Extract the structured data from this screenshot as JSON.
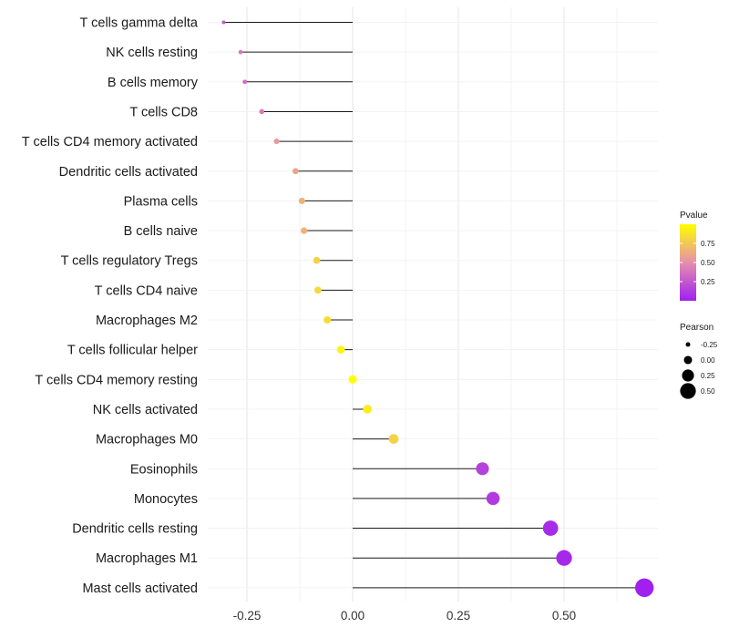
{
  "chart_data": {
    "type": "lollipop",
    "categories": [
      "T cells gamma delta",
      "NK cells resting",
      "B cells memory",
      "T cells CD8",
      "T cells CD4 memory activated",
      "Dendritic cells activated",
      "Plasma cells",
      "B cells naive",
      "T cells regulatory  Tregs ",
      "T cells CD4 naive",
      "Macrophages M2",
      "T cells follicular helper",
      "T cells CD4 memory resting",
      "NK cells activated",
      "Macrophages M0",
      "Eosinophils",
      "Monocytes",
      "Dendritic cells resting",
      "Macrophages M1",
      "Mast cells activated"
    ],
    "pearson": [
      -0.305,
      -0.265,
      -0.255,
      -0.215,
      -0.18,
      -0.135,
      -0.12,
      -0.115,
      -0.085,
      -0.082,
      -0.06,
      -0.028,
      0.0,
      0.035,
      0.097,
      0.307,
      0.332,
      0.468,
      0.5,
      0.69
    ],
    "pvalue": [
      0.25,
      0.4,
      0.35,
      0.4,
      0.55,
      0.6,
      0.65,
      0.65,
      0.8,
      0.82,
      0.85,
      0.95,
      1.0,
      0.92,
      0.8,
      0.15,
      0.12,
      0.05,
      0.04,
      0.0
    ],
    "xlim": [
      -0.33,
      0.75
    ],
    "x_ticks": [
      -0.25,
      0.0,
      0.25,
      0.5
    ],
    "x_tick_labels": [
      "-0.25",
      "0.00",
      "0.25",
      "0.50"
    ],
    "xlabel": "",
    "ylabel": "",
    "grid": true,
    "legend_color": {
      "title": "Pvalue",
      "ticks": [
        0.25,
        0.5,
        0.75
      ],
      "tick_labels": [
        "0.25",
        "0.50",
        "0.75"
      ],
      "color_low": "#a020f0",
      "color_mid": "#e68fac",
      "color_high": "#ffff00"
    },
    "legend_size": {
      "title": "Pearson",
      "values": [
        -0.25,
        0.0,
        0.25,
        0.5
      ],
      "labels": [
        "-0.25",
        "0.00",
        "0.25",
        "0.50"
      ]
    }
  }
}
